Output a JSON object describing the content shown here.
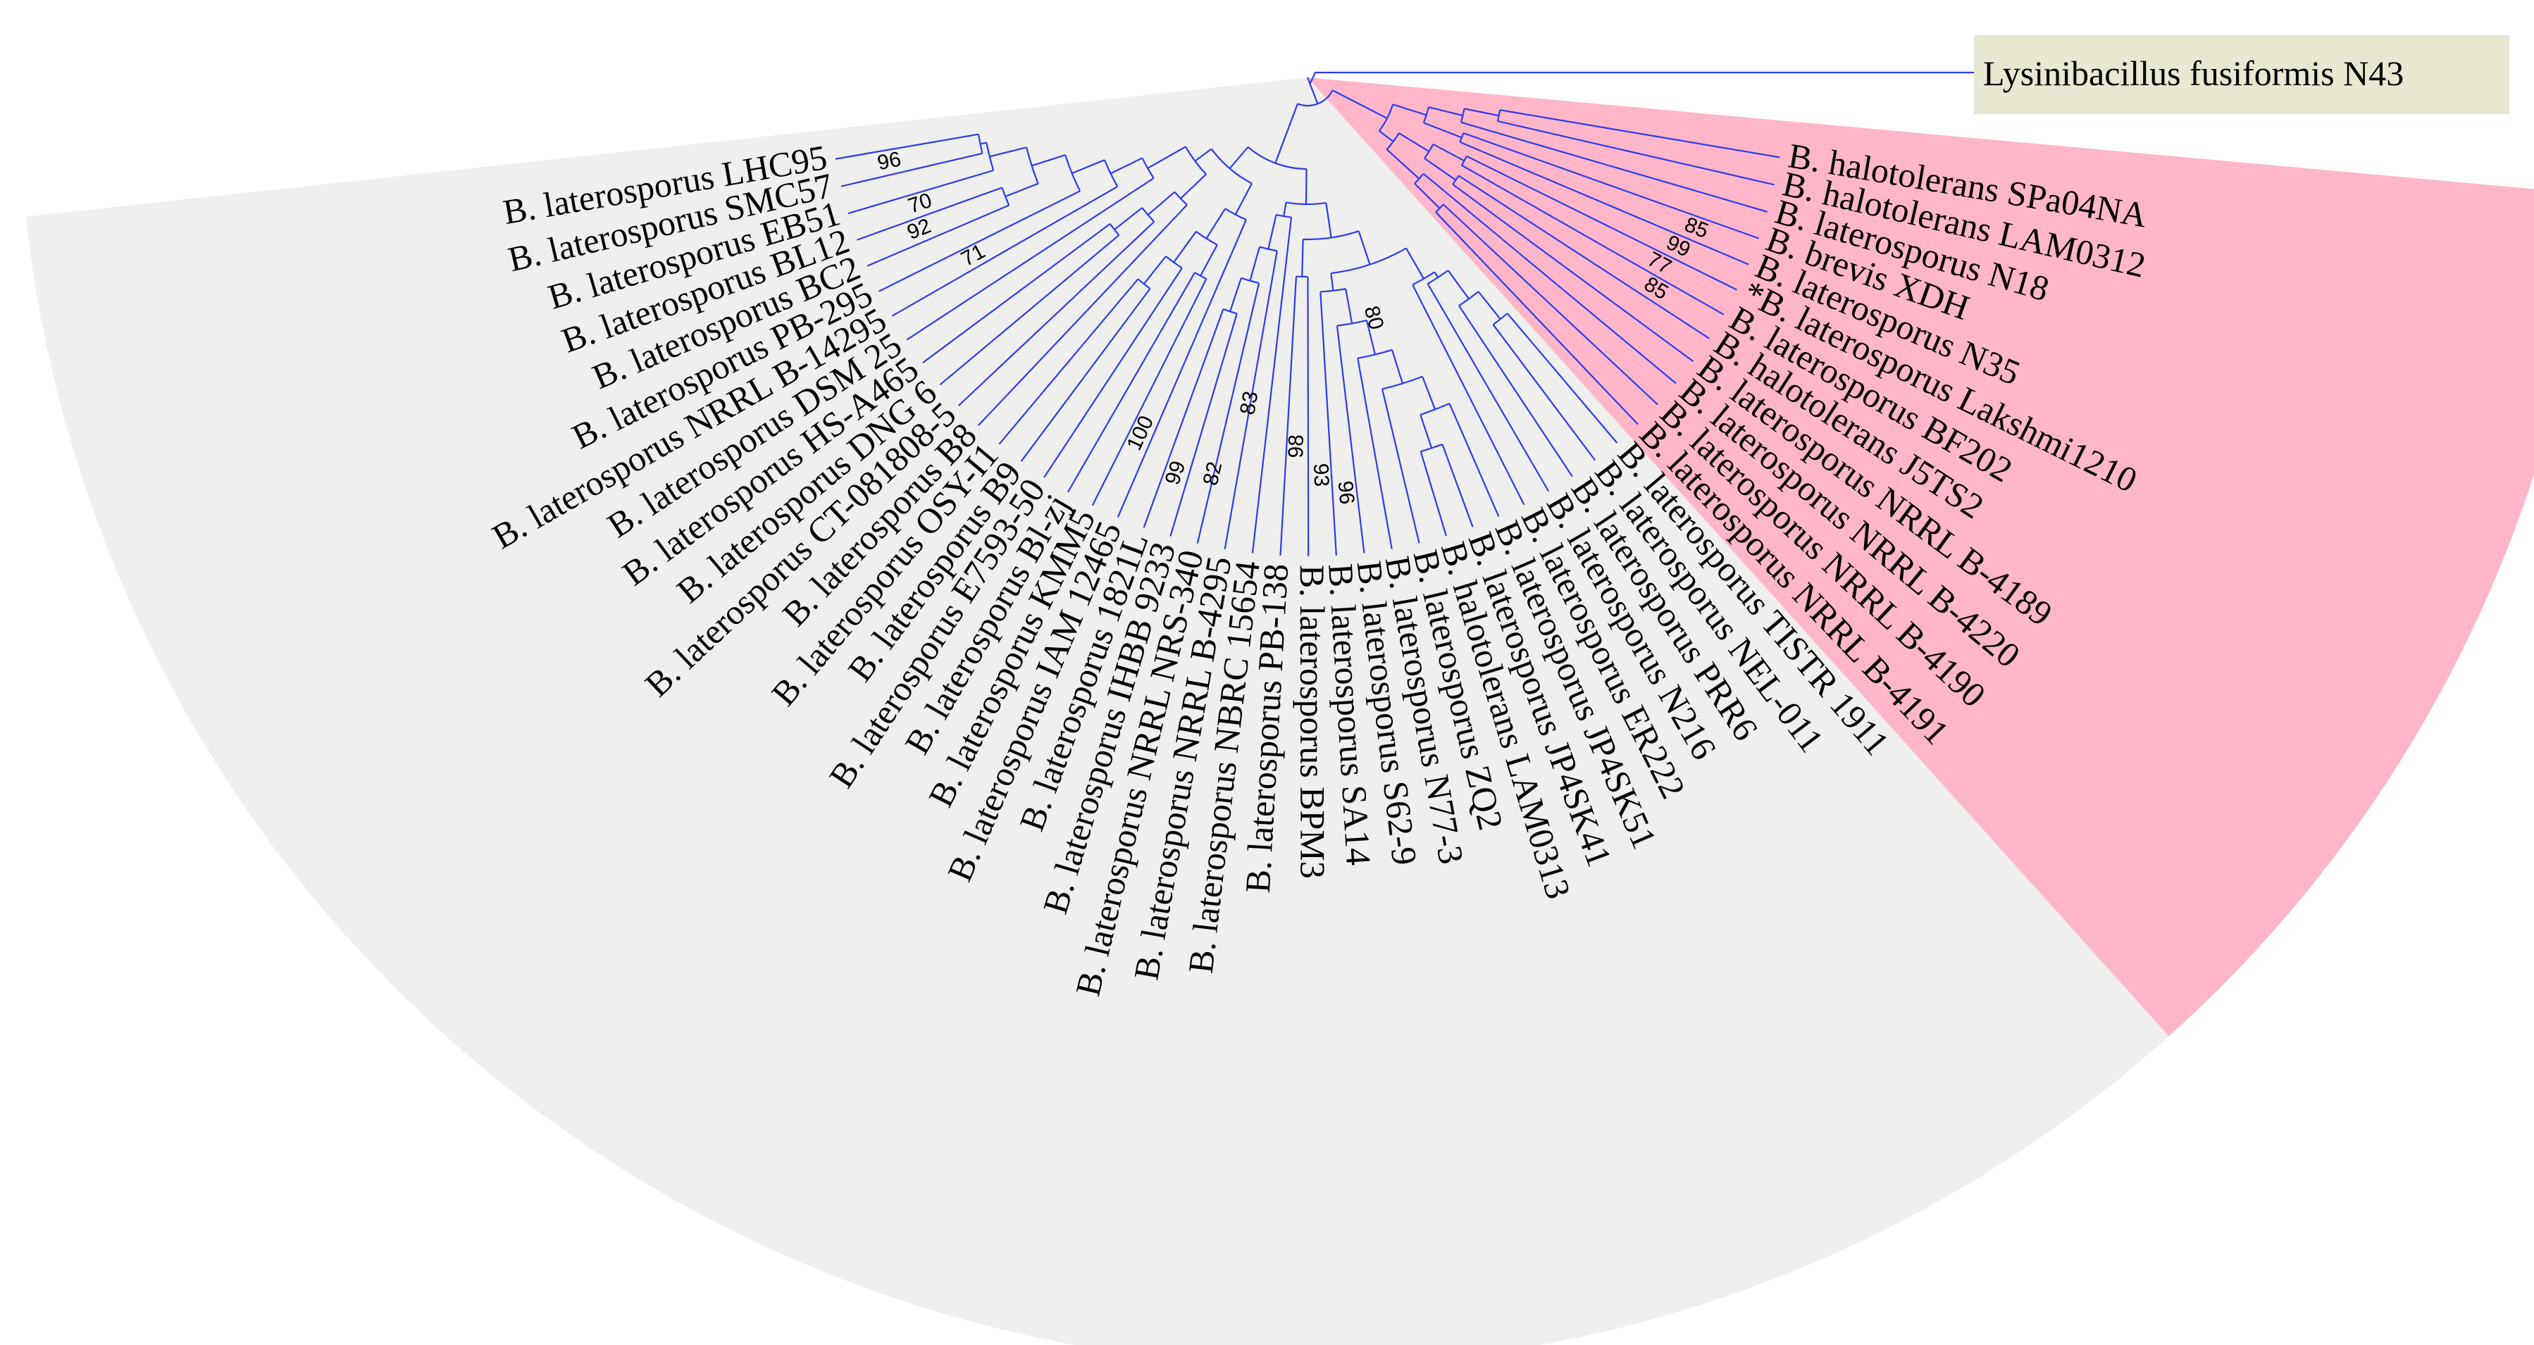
{
  "colors": {
    "branch": "#2a3cf0",
    "sector_main": "#efefed",
    "sector_pink": "#ffb6c8",
    "sector_outgroup": "#e8e8d2"
  },
  "outgroup": "Lysinibacillus fusiformis N43",
  "leaves": [
    {
      "label": "B. laterosporus LHC95",
      "group": "gray"
    },
    {
      "label": "B. laterosporus SMC57",
      "group": "gray"
    },
    {
      "label": "B. laterosporus EB51",
      "group": "gray"
    },
    {
      "label": "B. laterosporus BL12",
      "group": "gray"
    },
    {
      "label": "B. laterosporus BC2",
      "group": "gray"
    },
    {
      "label": "B. laterosporus PB-295",
      "group": "gray"
    },
    {
      "label": "B. laterosporus NRRL B-14295",
      "group": "gray"
    },
    {
      "label": "B. laterosporus DSM 25",
      "group": "gray"
    },
    {
      "label": "B. laterosporus HS-A465",
      "group": "gray"
    },
    {
      "label": "B. laterosporus DNG 6",
      "group": "gray"
    },
    {
      "label": "B. laterosporus CT-081808-5",
      "group": "gray"
    },
    {
      "label": "B. laterosporus B8",
      "group": "gray"
    },
    {
      "label": "B. laterosporus OSY-I1",
      "group": "gray"
    },
    {
      "label": "B. laterosporus B9",
      "group": "gray"
    },
    {
      "label": "B. laterosporus E7593-50",
      "group": "gray"
    },
    {
      "label": "B. laterosporus Bl-zj",
      "group": "gray"
    },
    {
      "label": "B. laterosporus KMM5",
      "group": "gray"
    },
    {
      "label": "B. laterosporus IAM 12465",
      "group": "gray"
    },
    {
      "label": "B. laterosporus 1821L",
      "group": "gray"
    },
    {
      "label": "B. laterosporus IHBB 9233",
      "group": "gray"
    },
    {
      "label": "B. laterosporus NRRL NRS-340",
      "group": "gray"
    },
    {
      "label": "B. laterosporus NRRL B-4295",
      "group": "gray"
    },
    {
      "label": "B. laterosporus NBRC 15654",
      "group": "gray"
    },
    {
      "label": "B. laterosporus PB-138",
      "group": "gray"
    },
    {
      "label": "B. laterosporus BPM3",
      "group": "gray"
    },
    {
      "label": "B. laterosporus SA14",
      "group": "gray"
    },
    {
      "label": "B. laterosporus S62-9",
      "group": "gray"
    },
    {
      "label": "B. laterosporus N77-3",
      "group": "gray"
    },
    {
      "label": "B. laterosporus ZQ2",
      "group": "gray"
    },
    {
      "label": "B. halotolerans LAM0313",
      "group": "gray"
    },
    {
      "label": "B. laterosporus JP4SK41",
      "group": "gray"
    },
    {
      "label": "B. laterosporus JP4SK51",
      "group": "gray"
    },
    {
      "label": "B. laterosporus ER222",
      "group": "gray"
    },
    {
      "label": "B. laterosporus N216",
      "group": "gray"
    },
    {
      "label": "B. laterosporus PRR6",
      "group": "gray"
    },
    {
      "label": "B. laterosporus NEL-011",
      "group": "gray"
    },
    {
      "label": "B. laterosporus TISTR 1911",
      "group": "gray"
    },
    {
      "label": "B. laterosporus NRRL B-4191",
      "group": "pink"
    },
    {
      "label": "B. laterosporus NRRL B-4190",
      "group": "pink"
    },
    {
      "label": "B. laterosporus NRRL B-4220",
      "group": "pink"
    },
    {
      "label": "B. laterosporus NRRL B-4189",
      "group": "pink"
    },
    {
      "label": "B. halotolerans J5TS2",
      "group": "pink"
    },
    {
      "label": "B. laterosporus BF202",
      "group": "pink"
    },
    {
      "label": "*B. laterosporus Lakshmi1210",
      "group": "pink"
    },
    {
      "label": "B. laterosporus N35",
      "group": "pink"
    },
    {
      "label": "B. brevis XDH",
      "group": "pink"
    },
    {
      "label": "B. laterosporus N18",
      "group": "pink"
    },
    {
      "label": "B. halotolerans LAM0312",
      "group": "pink"
    },
    {
      "label": "B. halotolerans SPa04NA",
      "group": "pink"
    }
  ],
  "bootstrap": [
    "96",
    "70",
    "92",
    "71",
    "100",
    "99",
    "82",
    "83",
    "98",
    "93",
    "96",
    "80",
    "85",
    "77",
    "99",
    "85"
  ]
}
